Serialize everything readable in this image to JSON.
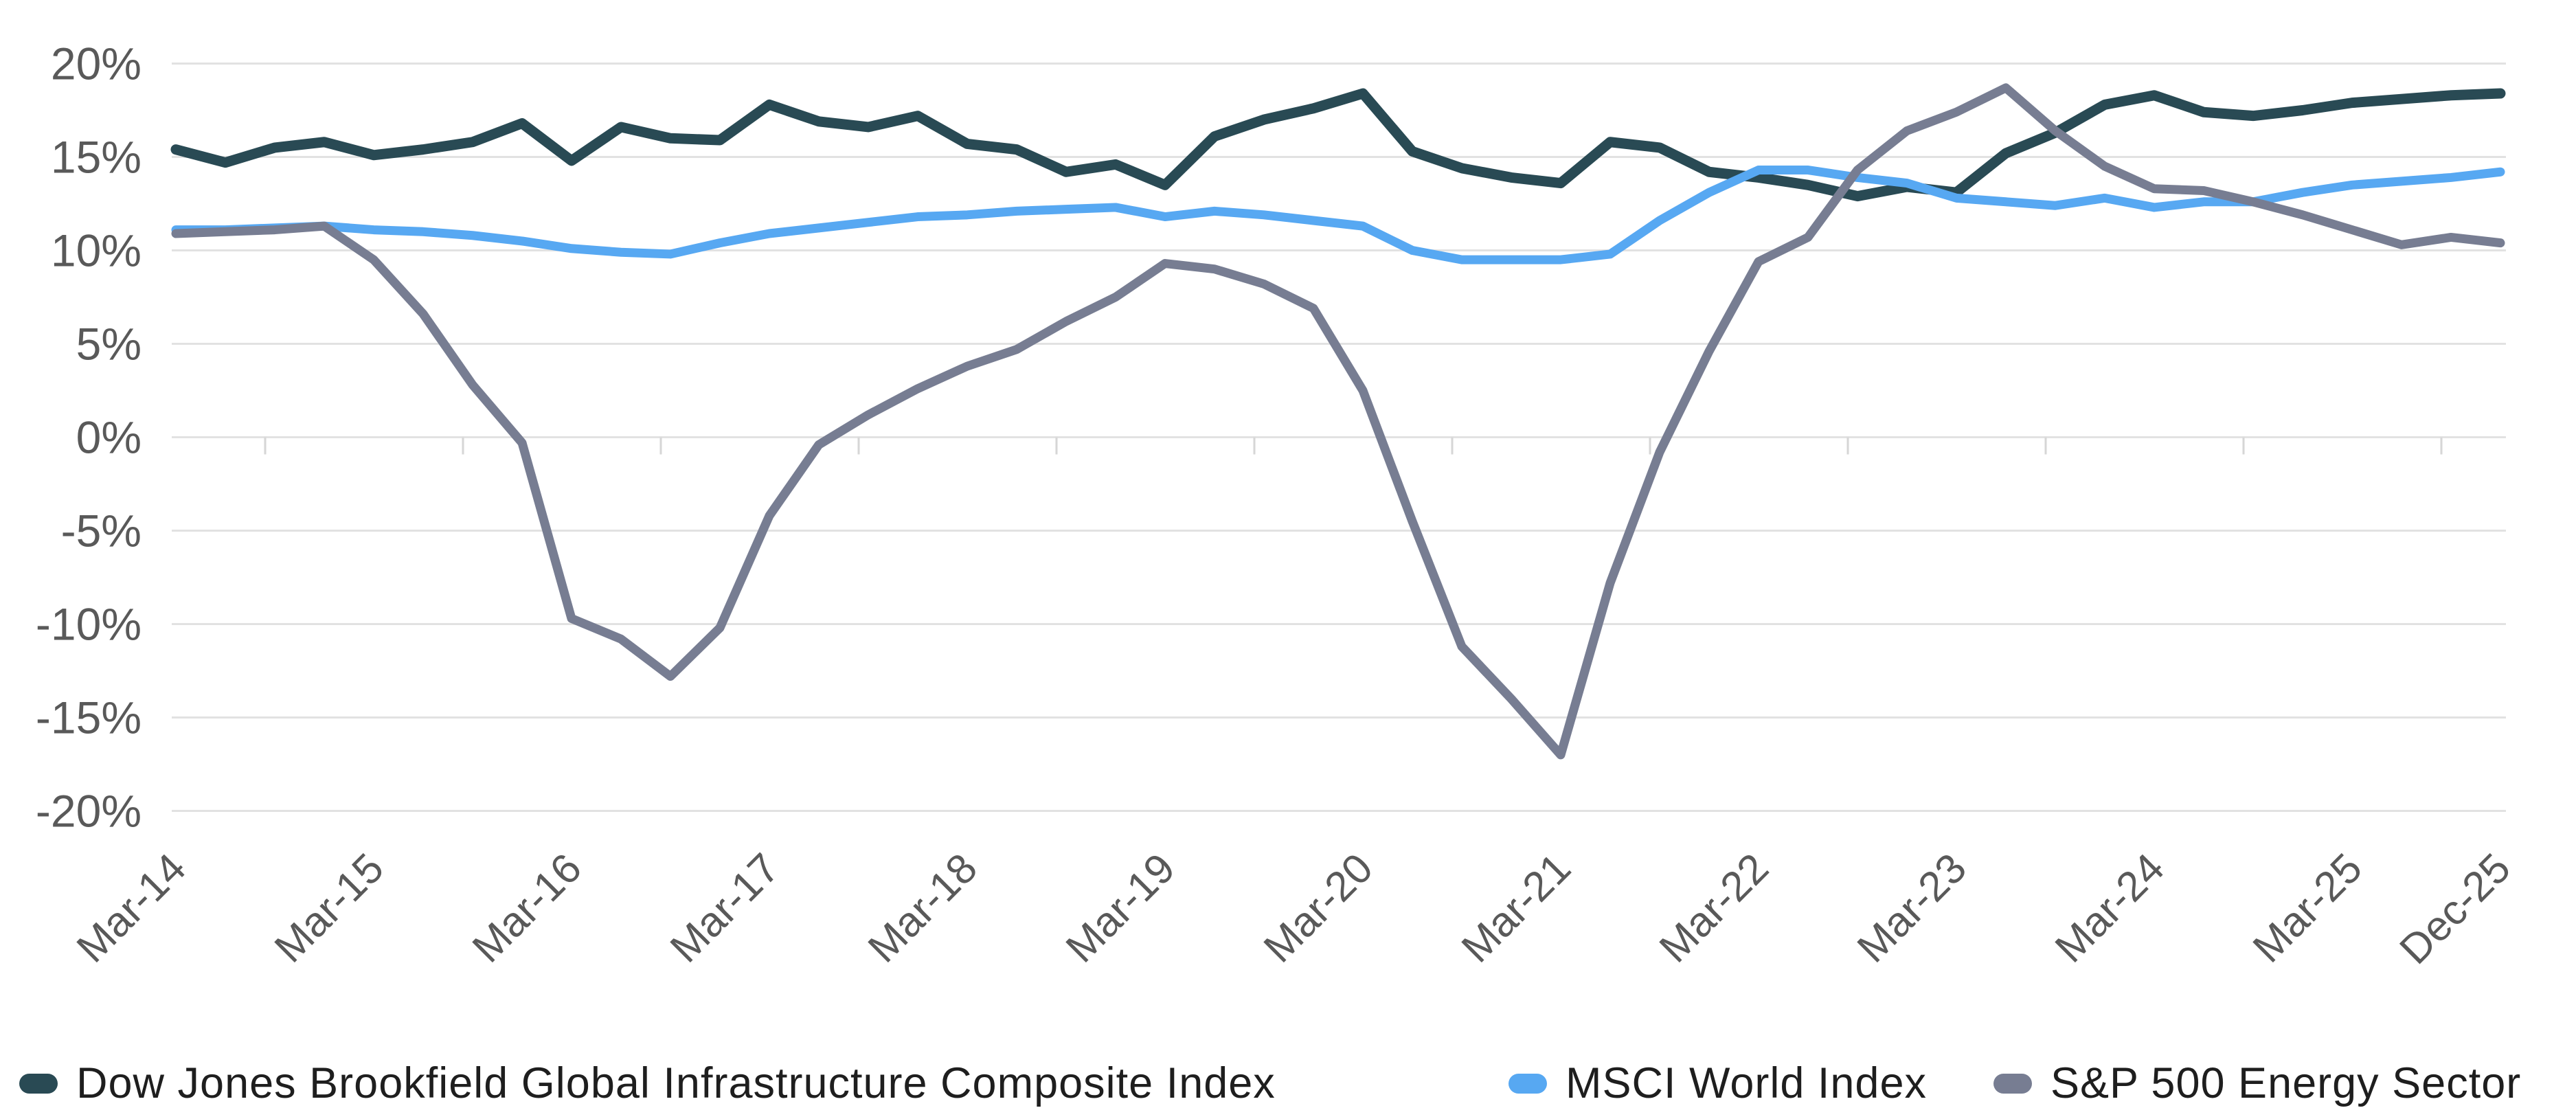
{
  "style": {
    "background": "#ffffff",
    "gridline_color": "#e2e2e2",
    "zero_axis_color": "#e2e2e2",
    "minor_tick_color": "#d6d6d6",
    "axis_label_color": "#595959",
    "legend_text_color": "#1e1e1e"
  },
  "legend": {
    "items": [
      {
        "label": "Dow Jones Brookfield Global Infrastructure Composite Index",
        "color": "#294a54"
      },
      {
        "label": "MSCI World Index",
        "color": "#57a8f2"
      },
      {
        "label": "S&P 500 Energy Sector",
        "color": "#777d92"
      }
    ]
  },
  "chart_data": {
    "type": "line",
    "grid": "horizontal",
    "legend_position": "bottom",
    "categories": [
      "Mar-14",
      "Jun-14",
      "Sep-14",
      "Dec-14",
      "Mar-15",
      "Jun-15",
      "Sep-15",
      "Dec-15",
      "Mar-16",
      "Jun-16",
      "Sep-16",
      "Dec-16",
      "Mar-17",
      "Jun-17",
      "Sep-17",
      "Dec-17",
      "Mar-18",
      "Jun-18",
      "Sep-18",
      "Dec-18",
      "Mar-19",
      "Jun-19",
      "Sep-19",
      "Dec-19",
      "Mar-20",
      "Jun-20",
      "Sep-20",
      "Dec-20",
      "Mar-21",
      "Jun-21",
      "Sep-21",
      "Dec-21",
      "Mar-22",
      "Jun-22",
      "Sep-22",
      "Dec-22",
      "Mar-23",
      "Jun-23",
      "Sep-23",
      "Dec-23",
      "Mar-24",
      "Jun-24",
      "Sep-24",
      "Dec-24",
      "Mar-25",
      "Jun-25",
      "Sep-25",
      "Dec-25"
    ],
    "series": [
      {
        "name": "Dow Jones Brookfield Global Infrastructure Composite Index",
        "color": "#294a54",
        "values": [
          15.4,
          14.7,
          15.5,
          15.8,
          15.1,
          15.4,
          15.8,
          16.8,
          14.8,
          16.6,
          16.0,
          15.9,
          17.8,
          16.9,
          16.6,
          17.2,
          15.7,
          15.4,
          14.2,
          14.6,
          13.5,
          16.1,
          17.0,
          17.6,
          18.4,
          15.3,
          14.4,
          13.9,
          13.6,
          15.8,
          15.5,
          14.2,
          13.9,
          13.5,
          12.9,
          13.4,
          13.1,
          15.2,
          16.3,
          17.8,
          18.3,
          17.4,
          17.2,
          17.5,
          17.9,
          18.1,
          18.3,
          18.4
        ]
      },
      {
        "name": "MSCI World Index",
        "color": "#57a8f2",
        "values": [
          11.1,
          11.1,
          11.2,
          11.3,
          11.1,
          11.0,
          10.8,
          10.5,
          10.1,
          9.9,
          9.8,
          10.4,
          10.9,
          11.2,
          11.5,
          11.8,
          11.9,
          12.1,
          12.2,
          12.3,
          11.8,
          12.1,
          11.9,
          11.6,
          11.3,
          10.0,
          9.5,
          9.5,
          9.5,
          9.8,
          11.6,
          13.1,
          14.3,
          14.3,
          13.9,
          13.6,
          12.8,
          12.6,
          12.4,
          12.8,
          12.3,
          12.6,
          12.6,
          13.1,
          13.5,
          13.7,
          13.9,
          14.2
        ]
      },
      {
        "name": "S&P 500 Energy Sector",
        "color": "#777d92",
        "values": [
          10.9,
          11.0,
          11.1,
          11.3,
          9.5,
          6.6,
          2.8,
          -0.3,
          -9.7,
          -10.8,
          -12.8,
          -10.2,
          -4.2,
          -0.4,
          1.2,
          2.6,
          3.8,
          4.7,
          6.2,
          7.5,
          9.3,
          9.0,
          8.2,
          6.9,
          2.5,
          -4.5,
          -11.2,
          -14.0,
          -17.0,
          -7.8,
          -0.8,
          4.6,
          9.4,
          10.7,
          14.3,
          16.4,
          17.4,
          18.7,
          16.4,
          14.5,
          13.3,
          13.2,
          12.6,
          11.9,
          11.1,
          10.3,
          10.7,
          10.4
        ]
      }
    ],
    "y_axis": {
      "min": -20,
      "max": 20,
      "step": 5,
      "tick_labels": [
        "20%",
        "15%",
        "10%",
        "5%",
        "0%",
        "-5%",
        "-10%",
        "-15%",
        "-20%"
      ],
      "tick_values": [
        20,
        15,
        10,
        5,
        0,
        -5,
        -10,
        -15,
        -20
      ]
    },
    "x_axis": {
      "ticks": [
        {
          "q": 0,
          "label": "Mar-14"
        },
        {
          "q": 4,
          "label": "Mar-15"
        },
        {
          "q": 8,
          "label": "Mar-16"
        },
        {
          "q": 12,
          "label": "Mar-17"
        },
        {
          "q": 16,
          "label": "Mar-18"
        },
        {
          "q": 20,
          "label": "Mar-19"
        },
        {
          "q": 24,
          "label": "Mar-20"
        },
        {
          "q": 28,
          "label": "Mar-21"
        },
        {
          "q": 32,
          "label": "Mar-22"
        },
        {
          "q": 36,
          "label": "Mar-23"
        },
        {
          "q": 40,
          "label": "Mar-24"
        },
        {
          "q": 44,
          "label": "Mar-25"
        },
        {
          "q": 47,
          "label": "Dec-25"
        }
      ],
      "minor_tick_quarters": [
        2,
        6,
        10,
        14,
        18,
        22,
        26,
        30,
        34,
        38,
        42,
        46
      ]
    }
  }
}
